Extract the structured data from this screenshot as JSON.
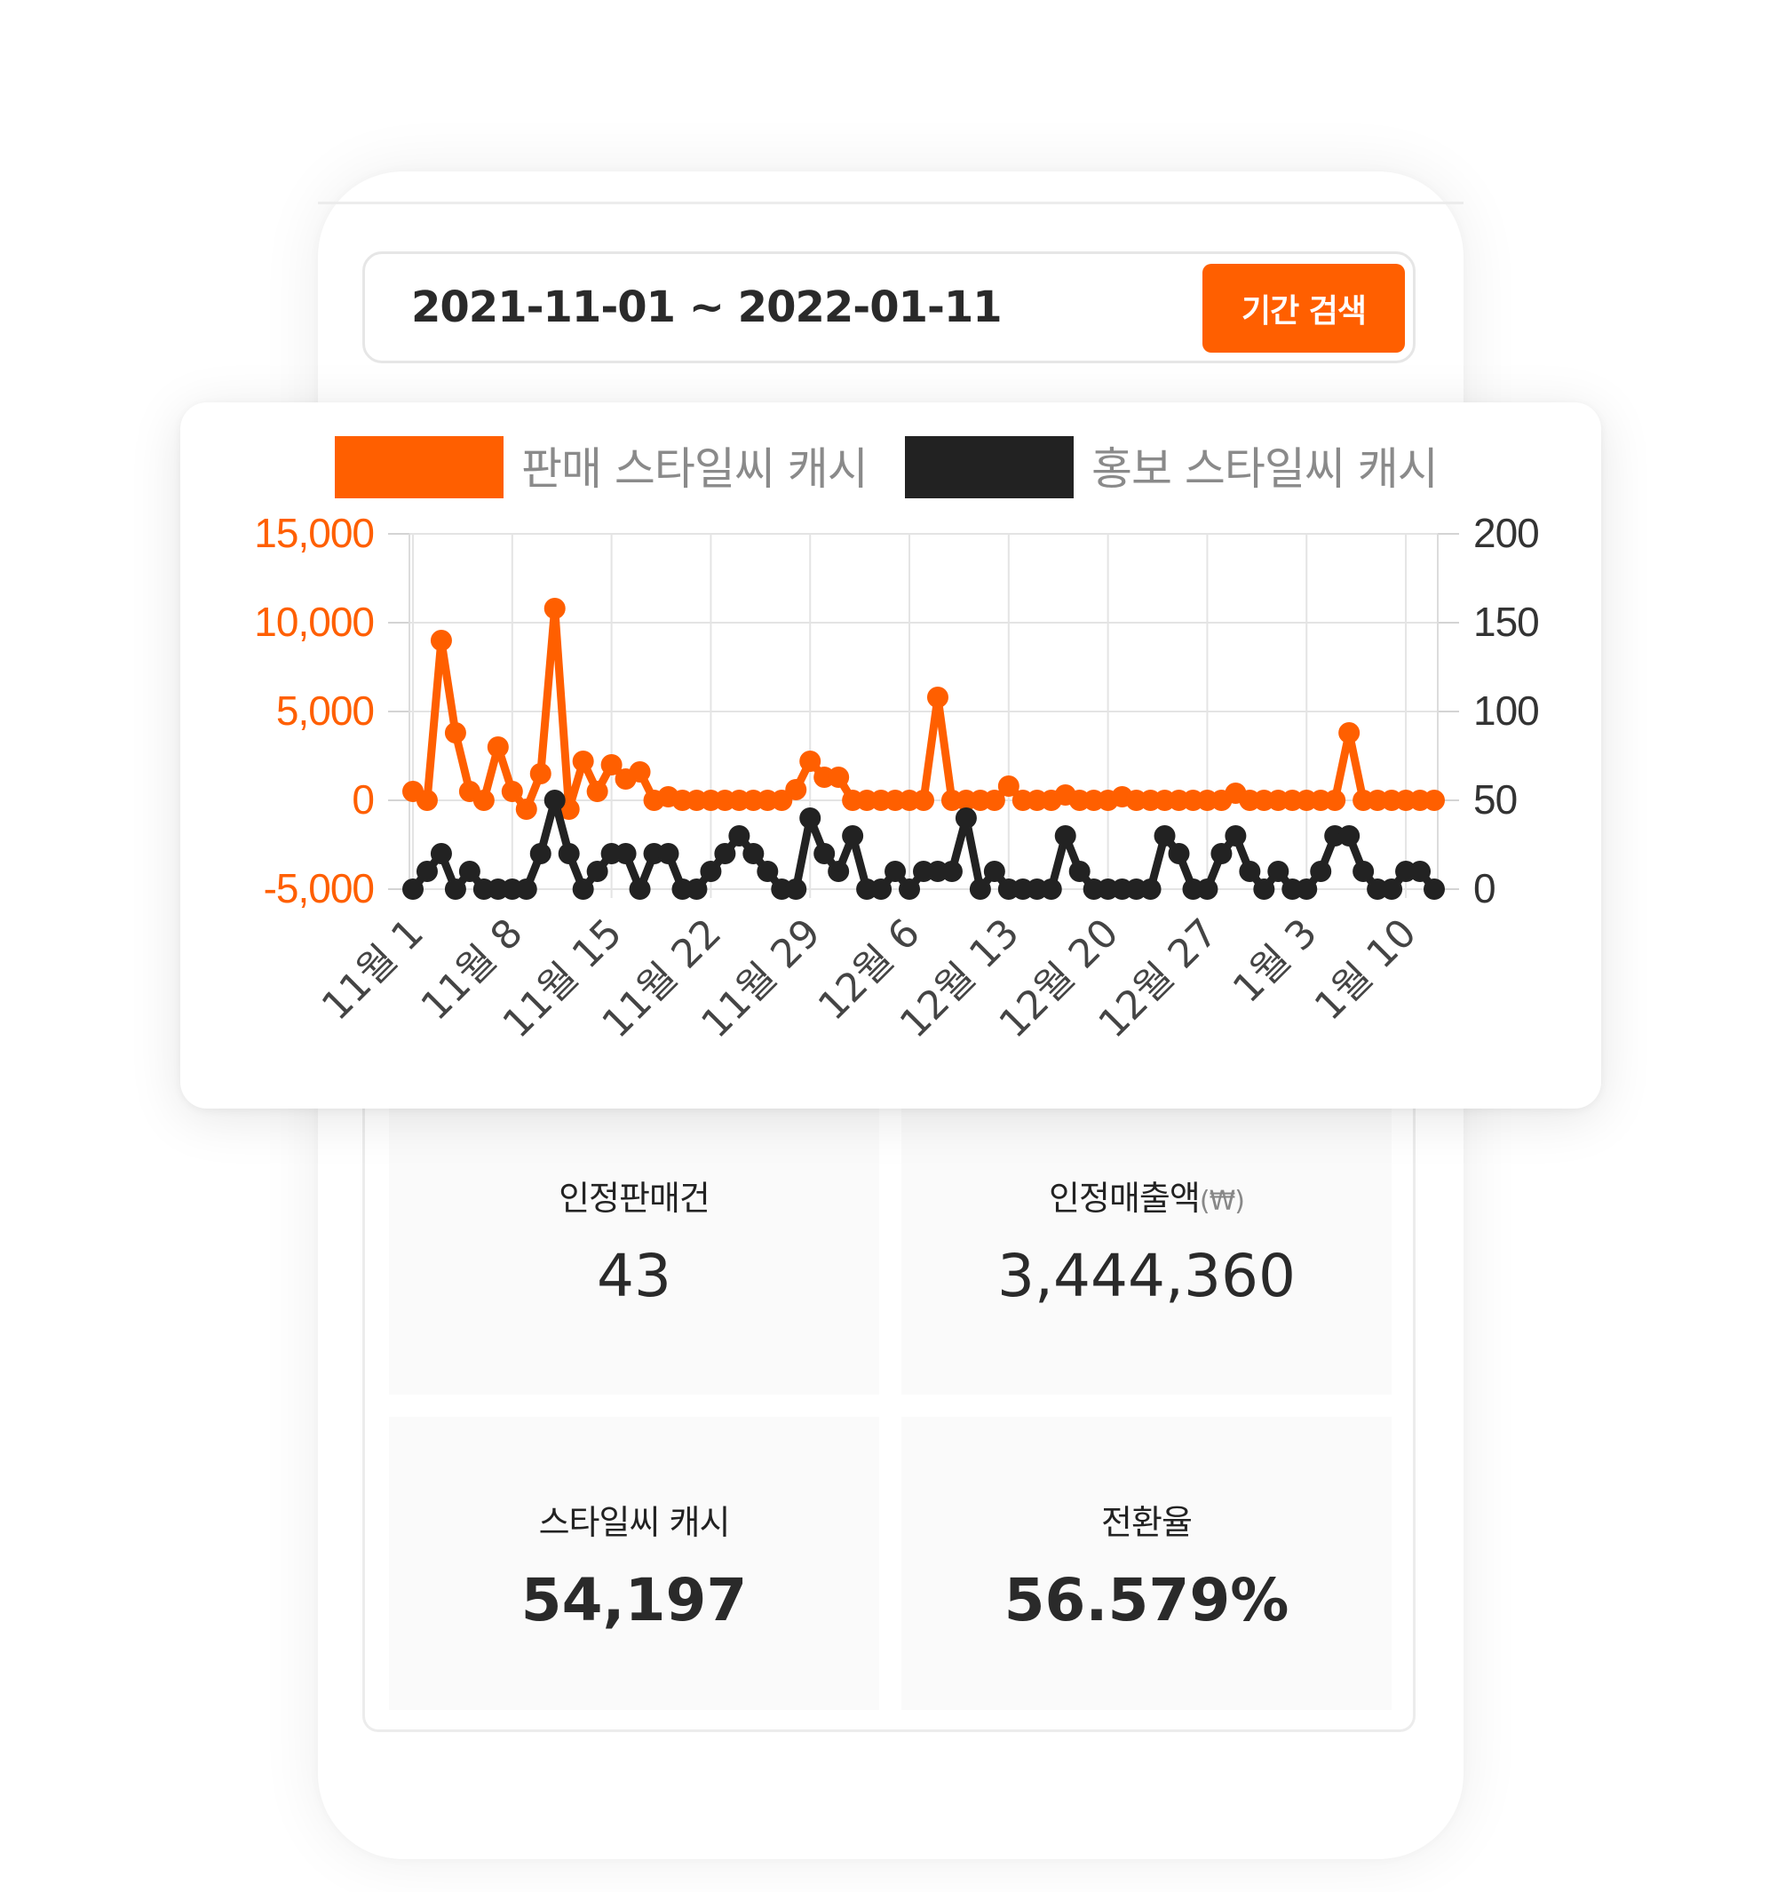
{
  "search": {
    "date_range": "2021-11-01 ~ 2022-01-11",
    "button_label": "기간 검색"
  },
  "colors": {
    "accent": "#ff5f00",
    "secondary": "#222222"
  },
  "chart_data": {
    "type": "line",
    "legend_position": "top",
    "grid": true,
    "x_tick_labels": [
      "11월 1",
      "11월 8",
      "11월 15",
      "11월 22",
      "11월 29",
      "12월 6",
      "12월 13",
      "12월 20",
      "12월 27",
      "1월 3",
      "1월 10"
    ],
    "x_tick_index": [
      0,
      7,
      14,
      21,
      28,
      35,
      42,
      49,
      56,
      63,
      70
    ],
    "y_left": {
      "ticks": [
        -5000,
        0,
        5000,
        10000,
        15000
      ],
      "tick_labels": [
        "-5,000",
        "0",
        "5,000",
        "10,000",
        "15,000"
      ],
      "range": [
        -5000,
        15000
      ]
    },
    "y_right": {
      "ticks": [
        0,
        50,
        100,
        150,
        200
      ],
      "tick_labels": [
        "0",
        "50",
        "100",
        "150",
        "200"
      ],
      "range": [
        0,
        200
      ]
    },
    "series": [
      {
        "name": "판매 스타일씨 캐시",
        "axis": "left",
        "color": "#ff5f00",
        "values": [
          500,
          0,
          9000,
          3800,
          500,
          0,
          3000,
          500,
          -500,
          1500,
          10800,
          -500,
          2200,
          500,
          2000,
          1200,
          1600,
          0,
          200,
          0,
          0,
          0,
          0,
          0,
          0,
          0,
          0,
          600,
          2200,
          1300,
          1300,
          0,
          0,
          0,
          0,
          0,
          0,
          5800,
          0,
          0,
          0,
          0,
          800,
          0,
          0,
          0,
          300,
          0,
          0,
          0,
          200,
          0,
          0,
          0,
          0,
          0,
          0,
          0,
          400,
          0,
          0,
          0,
          0,
          0,
          0,
          0,
          3800,
          0,
          0,
          0,
          0,
          0,
          0
        ]
      },
      {
        "name": "홍보 스타일씨 캐시",
        "axis": "right",
        "color": "#222222",
        "values": [
          0,
          10,
          20,
          0,
          10,
          0,
          0,
          0,
          0,
          20,
          50,
          20,
          0,
          10,
          20,
          20,
          0,
          20,
          20,
          0,
          0,
          10,
          20,
          30,
          20,
          10,
          0,
          0,
          40,
          20,
          10,
          30,
          0,
          0,
          10,
          0,
          10,
          10,
          10,
          40,
          0,
          10,
          0,
          0,
          0,
          0,
          30,
          10,
          0,
          0,
          0,
          0,
          0,
          30,
          20,
          0,
          0,
          20,
          30,
          10,
          0,
          10,
          0,
          0,
          10,
          30,
          30,
          10,
          0,
          0,
          10,
          10,
          0
        ]
      }
    ]
  },
  "stats": {
    "sales_count": {
      "label": "인정판매건",
      "value": "43"
    },
    "sales_amount": {
      "label": "인정매출액",
      "unit": "(₩)",
      "value": "3,444,360"
    },
    "style_cash": {
      "label": "스타일씨 캐시",
      "value": "54,197"
    },
    "conversion": {
      "label": "전환율",
      "value": "56.579%"
    }
  }
}
